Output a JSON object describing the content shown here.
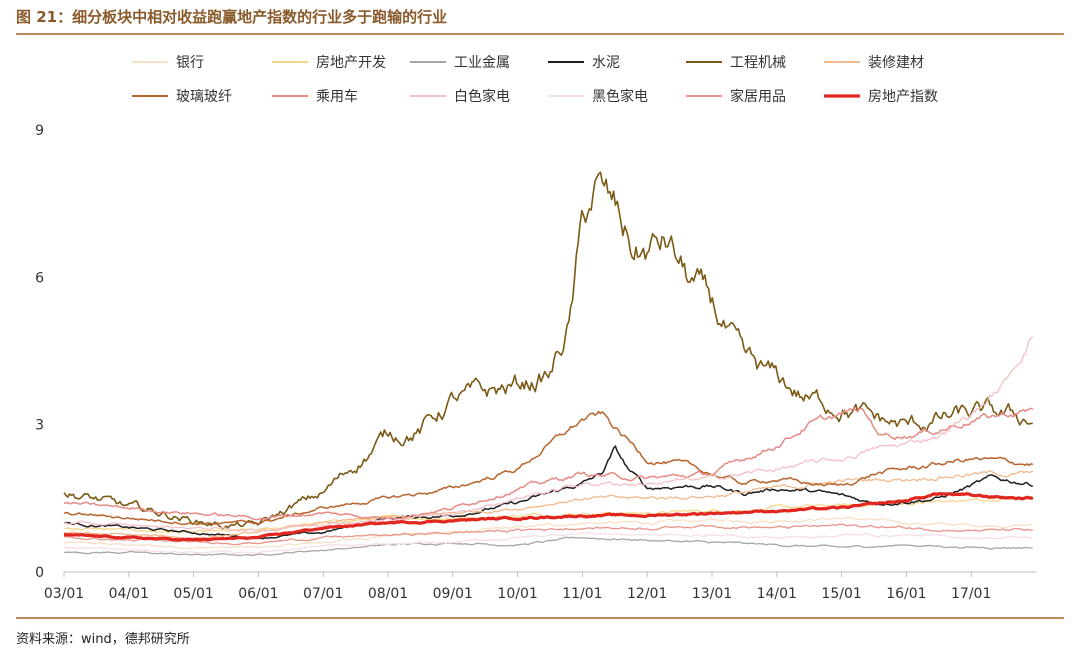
{
  "figure": {
    "title": "图 21：细分板块中相对收益跑赢地产指数的行业多于跑输的行业",
    "source": "资料来源：wind，德邦研究所"
  },
  "chart_data": {
    "type": "line",
    "title": "细分板块中相对收益跑赢地产指数的行业多于跑输的行业",
    "xlabel": "",
    "ylabel": "",
    "ylim": [
      0,
      9
    ],
    "yticks": [
      0,
      3,
      6,
      9
    ],
    "xlim": [
      2003.0,
      2018.0
    ],
    "x_ticks": [
      {
        "label": "03/01",
        "value": 2003.0
      },
      {
        "label": "04/01",
        "value": 2004.0
      },
      {
        "label": "05/01",
        "value": 2005.0
      },
      {
        "label": "06/01",
        "value": 2006.0
      },
      {
        "label": "07/01",
        "value": 2007.0
      },
      {
        "label": "08/01",
        "value": 2008.0
      },
      {
        "label": "09/01",
        "value": 2009.0
      },
      {
        "label": "10/01",
        "value": 2010.0
      },
      {
        "label": "11/01",
        "value": 2011.0
      },
      {
        "label": "12/01",
        "value": 2012.0
      },
      {
        "label": "13/01",
        "value": 2013.0
      },
      {
        "label": "14/01",
        "value": 2014.0
      },
      {
        "label": "15/01",
        "value": 2015.0
      },
      {
        "label": "16/01",
        "value": 2016.0
      },
      {
        "label": "17/01",
        "value": 2017.0
      }
    ],
    "legend_position": "top",
    "grid": false,
    "series": [
      {
        "name": "银行",
        "color": "#f8e0c4",
        "width": 1.3,
        "points": [
          [
            2003,
            0.6
          ],
          [
            2004,
            0.55
          ],
          [
            2005,
            0.5
          ],
          [
            2006,
            0.5
          ],
          [
            2007,
            0.6
          ],
          [
            2008,
            0.75
          ],
          [
            2009,
            0.8
          ],
          [
            2010,
            0.9
          ],
          [
            2011,
            1.0
          ],
          [
            2012,
            1.0
          ],
          [
            2013,
            1.05
          ],
          [
            2014,
            1.05
          ],
          [
            2015,
            1.1
          ],
          [
            2016,
            1.0
          ],
          [
            2017,
            0.95
          ],
          [
            2017.95,
            0.95
          ]
        ]
      },
      {
        "name": "房地产开发",
        "color": "#f7d68a",
        "width": 1.3,
        "points": [
          [
            2003,
            0.9
          ],
          [
            2004,
            0.85
          ],
          [
            2005,
            0.8
          ],
          [
            2006,
            0.85
          ],
          [
            2007,
            1.0
          ],
          [
            2008,
            1.1
          ],
          [
            2009,
            1.1
          ],
          [
            2010,
            1.15
          ],
          [
            2011,
            1.2
          ],
          [
            2012,
            1.2
          ],
          [
            2013,
            1.25
          ],
          [
            2014,
            1.3
          ],
          [
            2015,
            1.35
          ],
          [
            2016,
            1.4
          ],
          [
            2017,
            1.45
          ],
          [
            2017.95,
            1.5
          ]
        ]
      },
      {
        "name": "工业金属",
        "color": "#a6a6a6",
        "width": 1.3,
        "points": [
          [
            2003,
            0.4
          ],
          [
            2004,
            0.4
          ],
          [
            2005,
            0.35
          ],
          [
            2006,
            0.35
          ],
          [
            2007,
            0.45
          ],
          [
            2008,
            0.55
          ],
          [
            2009,
            0.6
          ],
          [
            2010,
            0.55
          ],
          [
            2011,
            0.7
          ],
          [
            2012,
            0.65
          ],
          [
            2013,
            0.6
          ],
          [
            2014,
            0.55
          ],
          [
            2015,
            0.5
          ],
          [
            2016,
            0.55
          ],
          [
            2017,
            0.5
          ],
          [
            2017.95,
            0.5
          ]
        ]
      },
      {
        "name": "水泥",
        "color": "#1f1f1f",
        "width": 1.5,
        "points": [
          [
            2003,
            1.0
          ],
          [
            2004,
            0.9
          ],
          [
            2005,
            0.8
          ],
          [
            2006,
            0.7
          ],
          [
            2007,
            0.8
          ],
          [
            2008,
            1.1
          ],
          [
            2009,
            1.15
          ],
          [
            2010,
            1.4
          ],
          [
            2011,
            1.8
          ],
          [
            2011.3,
            2.0
          ],
          [
            2011.5,
            2.5
          ],
          [
            2011.7,
            2.1
          ],
          [
            2012,
            1.7
          ],
          [
            2012.5,
            1.75
          ],
          [
            2013,
            1.75
          ],
          [
            2013.5,
            1.6
          ],
          [
            2014,
            1.7
          ],
          [
            2014.5,
            1.65
          ],
          [
            2015,
            1.55
          ],
          [
            2015.5,
            1.4
          ],
          [
            2016,
            1.45
          ],
          [
            2016.5,
            1.5
          ],
          [
            2017,
            1.75
          ],
          [
            2017.3,
            1.9
          ],
          [
            2017.95,
            1.8
          ]
        ]
      },
      {
        "name": "工程机械",
        "color": "#7b5a16",
        "width": 1.6,
        "points": [
          [
            2003,
            1.6
          ],
          [
            2003.4,
            1.5
          ],
          [
            2004,
            1.3
          ],
          [
            2004.5,
            1.2
          ],
          [
            2005,
            1.05
          ],
          [
            2005.5,
            0.95
          ],
          [
            2006,
            0.95
          ],
          [
            2006.5,
            1.3
          ],
          [
            2007,
            1.6
          ],
          [
            2007.5,
            2.2
          ],
          [
            2008,
            2.8
          ],
          [
            2008.5,
            2.9
          ],
          [
            2009,
            3.5
          ],
          [
            2009.5,
            3.6
          ],
          [
            2010,
            3.8
          ],
          [
            2010.5,
            4.0
          ],
          [
            2010.8,
            5.0
          ],
          [
            2011,
            7.0
          ],
          [
            2011.2,
            7.8
          ],
          [
            2011.5,
            7.3
          ],
          [
            2011.8,
            6.5
          ],
          [
            2012,
            6.5
          ],
          [
            2012.3,
            6.7
          ],
          [
            2012.6,
            6.0
          ],
          [
            2013,
            5.4
          ],
          [
            2013.5,
            4.2
          ],
          [
            2014,
            3.9
          ],
          [
            2014.5,
            3.5
          ],
          [
            2015,
            3.4
          ],
          [
            2015.5,
            3.1
          ],
          [
            2016,
            2.95
          ],
          [
            2016.5,
            3.1
          ],
          [
            2017,
            3.2
          ],
          [
            2017.3,
            3.2
          ],
          [
            2017.95,
            3.1
          ]
        ]
      },
      {
        "name": "装修建材",
        "color": "#f2b98c",
        "width": 1.3,
        "points": [
          [
            2003,
            0.8
          ],
          [
            2004,
            0.75
          ],
          [
            2005,
            0.7
          ],
          [
            2006,
            0.8
          ],
          [
            2007,
            1.0
          ],
          [
            2008,
            1.1
          ],
          [
            2009,
            1.2
          ],
          [
            2010,
            1.3
          ],
          [
            2011,
            1.5
          ],
          [
            2012,
            1.5
          ],
          [
            2013,
            1.55
          ],
          [
            2014,
            1.7
          ],
          [
            2015,
            1.85
          ],
          [
            2016,
            1.9
          ],
          [
            2017,
            2.0
          ],
          [
            2017.95,
            2.0
          ]
        ]
      },
      {
        "name": "玻璃玻纤",
        "color": "#b8642e",
        "width": 1.5,
        "points": [
          [
            2003,
            1.2
          ],
          [
            2004,
            1.1
          ],
          [
            2005,
            1.0
          ],
          [
            2006,
            1.0
          ],
          [
            2007,
            1.3
          ],
          [
            2008,
            1.5
          ],
          [
            2009,
            1.7
          ],
          [
            2010,
            2.1
          ],
          [
            2010.5,
            2.6
          ],
          [
            2011,
            3.1
          ],
          [
            2011.3,
            3.2
          ],
          [
            2011.6,
            2.8
          ],
          [
            2012,
            2.3
          ],
          [
            2012.5,
            2.2
          ],
          [
            2013,
            2.0
          ],
          [
            2013.5,
            1.8
          ],
          [
            2014,
            1.9
          ],
          [
            2014.5,
            1.8
          ],
          [
            2015,
            1.75
          ],
          [
            2015.5,
            2.0
          ],
          [
            2016,
            2.1
          ],
          [
            2016.5,
            2.2
          ],
          [
            2017,
            2.3
          ],
          [
            2017.95,
            2.2
          ]
        ]
      },
      {
        "name": "乘用车",
        "color": "#e78a84",
        "width": 1.5,
        "points": [
          [
            2003,
            1.4
          ],
          [
            2004,
            1.3
          ],
          [
            2005,
            1.2
          ],
          [
            2006,
            1.1
          ],
          [
            2007,
            1.2
          ],
          [
            2008,
            1.1
          ],
          [
            2009,
            1.3
          ],
          [
            2010,
            1.7
          ],
          [
            2011,
            2.0
          ],
          [
            2012,
            1.9
          ],
          [
            2013,
            2.0
          ],
          [
            2013.5,
            2.3
          ],
          [
            2014,
            2.6
          ],
          [
            2014.5,
            3.0
          ],
          [
            2015,
            3.2
          ],
          [
            2015.3,
            3.3
          ],
          [
            2015.6,
            2.8
          ],
          [
            2016,
            2.8
          ],
          [
            2016.5,
            2.9
          ],
          [
            2017,
            3.1
          ],
          [
            2017.5,
            3.2
          ],
          [
            2017.95,
            3.3
          ]
        ]
      },
      {
        "name": "白色家电",
        "color": "#f3c0c6",
        "width": 1.3,
        "points": [
          [
            2003,
            1.0
          ],
          [
            2004,
            0.95
          ],
          [
            2005,
            0.9
          ],
          [
            2006,
            0.85
          ],
          [
            2007,
            1.0
          ],
          [
            2008,
            1.05
          ],
          [
            2009,
            1.2
          ],
          [
            2010,
            1.5
          ],
          [
            2011,
            1.8
          ],
          [
            2012,
            1.8
          ],
          [
            2013,
            1.9
          ],
          [
            2014,
            2.1
          ],
          [
            2015,
            2.3
          ],
          [
            2015.5,
            2.5
          ],
          [
            2016,
            2.6
          ],
          [
            2016.5,
            2.8
          ],
          [
            2017,
            3.2
          ],
          [
            2017.5,
            3.8
          ],
          [
            2017.8,
            4.5
          ],
          [
            2017.95,
            4.85
          ]
        ]
      },
      {
        "name": "黑色家电",
        "color": "#f6dfe6",
        "width": 1.3,
        "points": [
          [
            2003,
            0.5
          ],
          [
            2004,
            0.45
          ],
          [
            2005,
            0.4
          ],
          [
            2006,
            0.4
          ],
          [
            2007,
            0.55
          ],
          [
            2008,
            0.55
          ],
          [
            2009,
            0.6
          ],
          [
            2010,
            0.7
          ],
          [
            2011,
            0.8
          ],
          [
            2012,
            0.75
          ],
          [
            2013,
            0.75
          ],
          [
            2014,
            0.7
          ],
          [
            2015,
            0.75
          ],
          [
            2016,
            0.75
          ],
          [
            2017,
            0.7
          ],
          [
            2017.95,
            0.7
          ]
        ]
      },
      {
        "name": "家居用品",
        "color": "#ea9388",
        "width": 1.3,
        "points": [
          [
            2003,
            0.7
          ],
          [
            2004,
            0.65
          ],
          [
            2005,
            0.6
          ],
          [
            2006,
            0.6
          ],
          [
            2007,
            0.7
          ],
          [
            2008,
            0.75
          ],
          [
            2009,
            0.8
          ],
          [
            2010,
            0.85
          ],
          [
            2011,
            0.9
          ],
          [
            2012,
            0.9
          ],
          [
            2013,
            0.95
          ],
          [
            2014,
            0.9
          ],
          [
            2015,
            0.95
          ],
          [
            2016,
            0.9
          ],
          [
            2017,
            0.85
          ],
          [
            2017.95,
            0.85
          ]
        ]
      },
      {
        "name": "房地产指数",
        "color": "#e0261f",
        "width": 3.2,
        "points": [
          [
            2003,
            0.75
          ],
          [
            2004,
            0.7
          ],
          [
            2005,
            0.65
          ],
          [
            2006,
            0.7
          ],
          [
            2006.5,
            0.8
          ],
          [
            2007,
            0.9
          ],
          [
            2008,
            1.0
          ],
          [
            2009,
            1.05
          ],
          [
            2010,
            1.1
          ],
          [
            2011,
            1.15
          ],
          [
            2012,
            1.15
          ],
          [
            2013,
            1.2
          ],
          [
            2014,
            1.25
          ],
          [
            2015,
            1.3
          ],
          [
            2016,
            1.45
          ],
          [
            2016.5,
            1.6
          ],
          [
            2017,
            1.55
          ],
          [
            2017.95,
            1.5
          ]
        ]
      }
    ]
  }
}
